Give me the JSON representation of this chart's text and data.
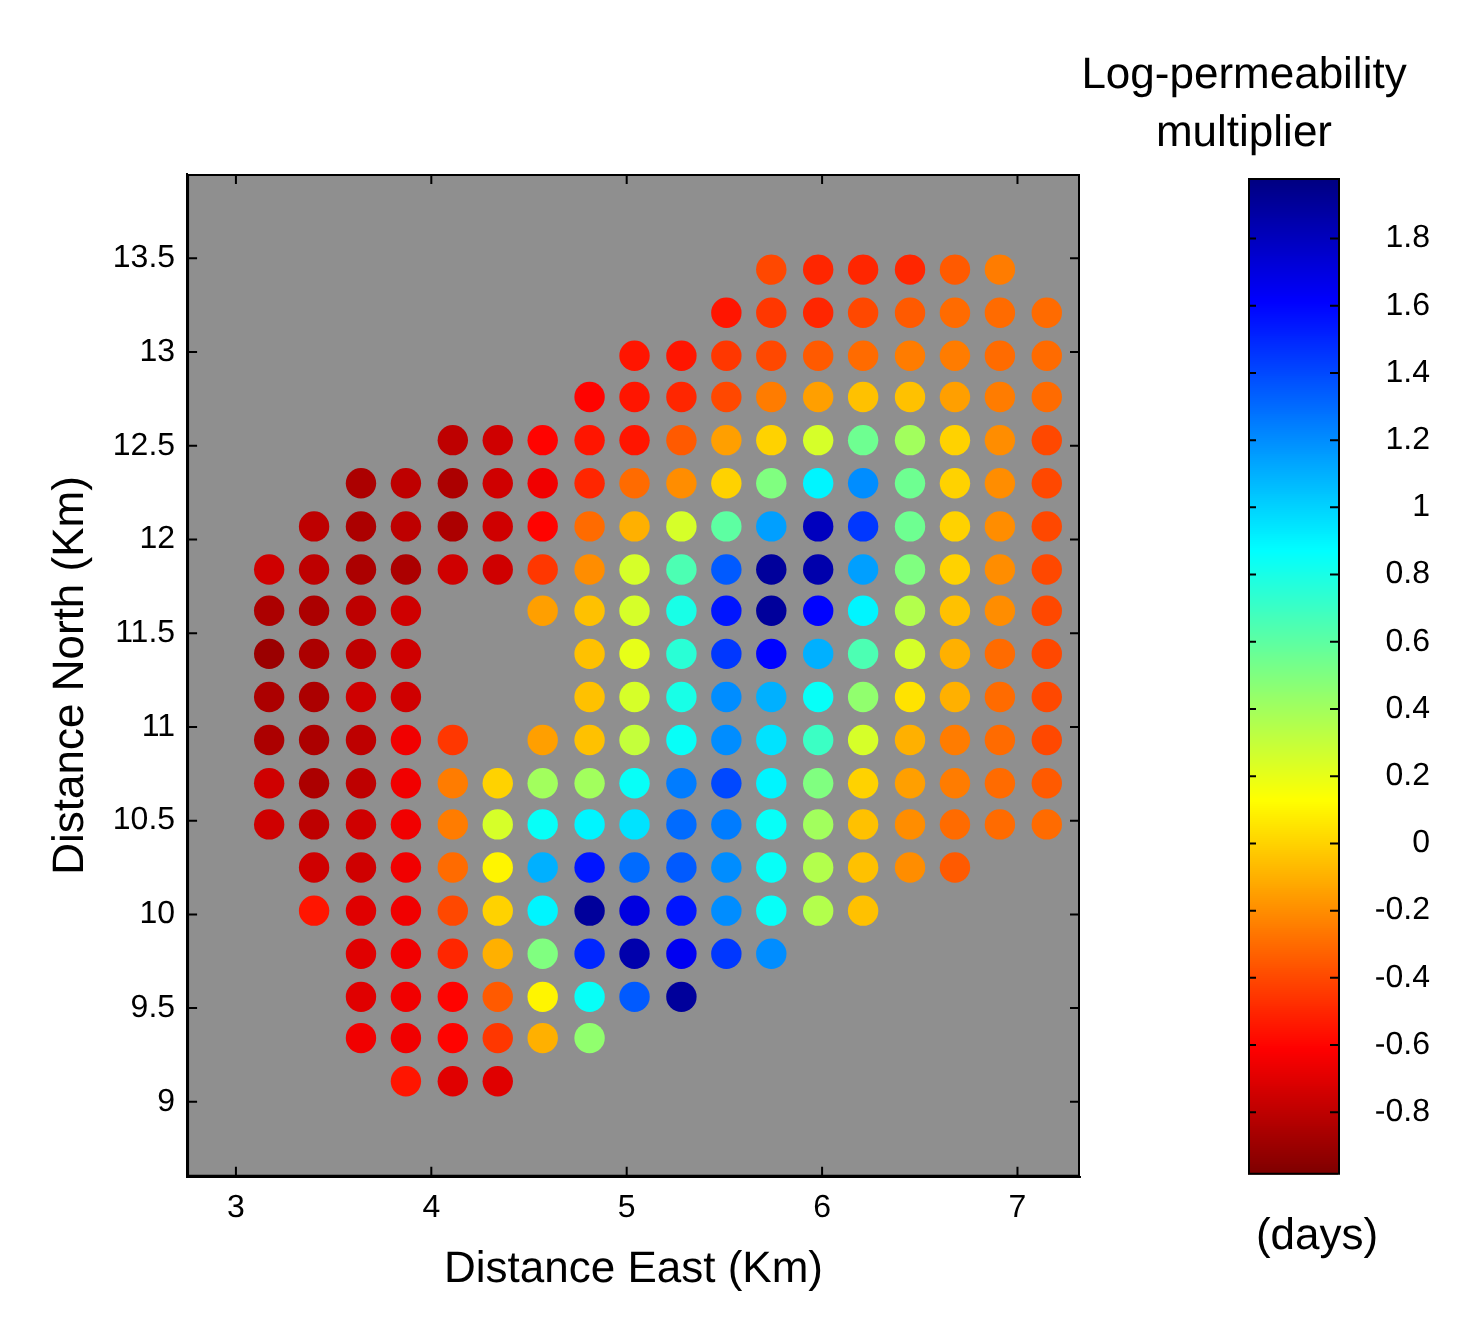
{
  "chart_data": {
    "type": "scatter",
    "xlabel": "Distance East (Km)",
    "ylabel": "Distance North (Km)",
    "clabel": "Log-permeability multiplier",
    "annotations": [
      "(days)"
    ],
    "marker": "circle",
    "xlim": [
      2.75,
      7.32
    ],
    "xticks": [
      3,
      4,
      5,
      6,
      7
    ],
    "ylim": [
      8.6,
      13.95
    ],
    "yticks": [
      9,
      9.5,
      10,
      10.5,
      11,
      11.5,
      12,
      12.5,
      13,
      13.5
    ],
    "clim": [
      -0.98,
      1.98
    ],
    "cticks": [
      -0.8,
      -0.6,
      -0.4,
      -0.2,
      0,
      0.2,
      0.4,
      0.6,
      0.8,
      1,
      1.2,
      1.4,
      1.6,
      1.8
    ],
    "x": [
      5.74,
      5.98,
      6.21,
      6.45,
      6.68,
      6.91,
      5.51,
      5.74,
      5.98,
      6.21,
      6.45,
      6.68,
      6.91,
      7.15,
      5.04,
      5.28,
      5.51,
      5.74,
      5.98,
      6.21,
      6.45,
      6.68,
      6.91,
      7.15,
      4.81,
      5.04,
      5.28,
      5.51,
      5.74,
      5.98,
      6.21,
      6.45,
      6.68,
      6.91,
      7.15,
      4.11,
      4.34,
      4.57,
      4.81,
      5.04,
      5.28,
      5.51,
      5.74,
      5.98,
      6.21,
      6.45,
      6.68,
      6.91,
      7.15,
      3.64,
      3.87,
      4.11,
      4.34,
      4.57,
      4.81,
      5.04,
      5.28,
      5.51,
      5.74,
      5.98,
      6.21,
      6.45,
      6.68,
      6.91,
      7.15,
      3.4,
      3.64,
      3.87,
      4.11,
      4.34,
      4.57,
      4.81,
      5.04,
      5.28,
      5.51,
      5.74,
      5.98,
      6.21,
      6.45,
      6.68,
      6.91,
      7.15,
      3.17,
      3.4,
      3.64,
      3.87,
      4.11,
      4.34,
      4.57,
      4.81,
      5.04,
      5.28,
      5.51,
      5.74,
      5.98,
      6.21,
      6.45,
      6.68,
      6.91,
      7.15,
      3.17,
      3.4,
      3.64,
      3.87,
      4.57,
      4.81,
      5.04,
      5.28,
      5.51,
      5.74,
      5.98,
      6.21,
      6.45,
      6.68,
      6.91,
      7.15,
      3.17,
      3.4,
      3.64,
      3.87,
      4.81,
      5.04,
      5.28,
      5.51,
      5.74,
      5.98,
      6.21,
      6.45,
      6.68,
      6.91,
      7.15,
      3.17,
      3.4,
      3.64,
      3.87,
      4.81,
      5.04,
      5.28,
      5.51,
      5.74,
      5.98,
      6.21,
      6.45,
      6.68,
      6.91,
      7.15,
      3.17,
      3.4,
      3.64,
      3.87,
      4.11,
      4.57,
      4.81,
      5.04,
      5.28,
      5.51,
      5.74,
      5.98,
      6.21,
      6.45,
      6.68,
      6.91,
      7.15,
      3.17,
      3.4,
      3.64,
      3.87,
      4.11,
      4.34,
      4.57,
      4.81,
      5.04,
      5.28,
      5.51,
      5.74,
      5.98,
      6.21,
      6.45,
      6.68,
      6.91,
      7.15,
      3.17,
      3.4,
      3.64,
      3.87,
      4.11,
      4.34,
      4.57,
      4.81,
      5.04,
      5.28,
      5.51,
      5.74,
      5.98,
      6.21,
      6.45,
      6.68,
      6.91,
      7.15,
      3.4,
      3.64,
      3.87,
      4.11,
      4.34,
      4.57,
      4.81,
      5.04,
      5.28,
      5.51,
      5.74,
      5.98,
      6.21,
      6.45,
      6.68,
      3.4,
      3.64,
      3.87,
      4.11,
      4.34,
      4.57,
      4.81,
      5.04,
      5.28,
      5.51,
      5.74,
      5.98,
      6.21,
      3.64,
      3.87,
      4.11,
      4.34,
      4.57,
      4.81,
      5.04,
      5.28,
      5.51,
      5.74,
      3.64,
      3.87,
      4.11,
      4.34,
      4.57,
      4.81,
      5.04,
      5.28,
      3.64,
      3.87,
      4.11,
      4.34,
      4.57,
      4.81,
      3.87,
      4.11,
      4.34
    ],
    "values": [
      13.44,
      13.44,
      13.44,
      13.44,
      13.44,
      13.44,
      13.21,
      13.21,
      13.21,
      13.21,
      13.21,
      13.21,
      13.21,
      13.21,
      12.98,
      12.98,
      12.98,
      12.98,
      12.98,
      12.98,
      12.98,
      12.98,
      12.98,
      12.98,
      12.76,
      12.76,
      12.76,
      12.76,
      12.76,
      12.76,
      12.76,
      12.76,
      12.76,
      12.76,
      12.76,
      12.53,
      12.53,
      12.53,
      12.53,
      12.53,
      12.53,
      12.53,
      12.53,
      12.53,
      12.53,
      12.53,
      12.53,
      12.53,
      12.53,
      12.3,
      12.3,
      12.3,
      12.3,
      12.3,
      12.3,
      12.3,
      12.3,
      12.3,
      12.3,
      12.3,
      12.3,
      12.3,
      12.3,
      12.3,
      12.3,
      12.07,
      12.07,
      12.07,
      12.07,
      12.07,
      12.07,
      12.07,
      12.07,
      12.07,
      12.07,
      12.07,
      12.07,
      12.07,
      12.07,
      12.07,
      12.07,
      12.07,
      11.84,
      11.84,
      11.84,
      11.84,
      11.84,
      11.84,
      11.84,
      11.84,
      11.84,
      11.84,
      11.84,
      11.84,
      11.84,
      11.84,
      11.84,
      11.84,
      11.84,
      11.84,
      11.62,
      11.62,
      11.62,
      11.62,
      11.62,
      11.62,
      11.62,
      11.62,
      11.62,
      11.62,
      11.62,
      11.62,
      11.62,
      11.62,
      11.62,
      11.62,
      11.39,
      11.39,
      11.39,
      11.39,
      11.39,
      11.39,
      11.39,
      11.39,
      11.39,
      11.39,
      11.39,
      11.39,
      11.39,
      11.39,
      11.39,
      11.16,
      11.16,
      11.16,
      11.16,
      11.16,
      11.16,
      11.16,
      11.16,
      11.16,
      11.16,
      11.16,
      11.16,
      11.16,
      11.16,
      11.16,
      10.93,
      10.93,
      10.93,
      10.93,
      10.93,
      10.93,
      10.93,
      10.93,
      10.93,
      10.93,
      10.93,
      10.93,
      10.93,
      10.93,
      10.93,
      10.93,
      10.93,
      10.7,
      10.7,
      10.7,
      10.7,
      10.7,
      10.7,
      10.7,
      10.7,
      10.7,
      10.7,
      10.7,
      10.7,
      10.7,
      10.7,
      10.7,
      10.7,
      10.7,
      10.7,
      10.48,
      10.48,
      10.48,
      10.48,
      10.48,
      10.48,
      10.48,
      10.48,
      10.48,
      10.48,
      10.48,
      10.48,
      10.48,
      10.48,
      10.48,
      10.48,
      10.48,
      10.48,
      10.25,
      10.25,
      10.25,
      10.25,
      10.25,
      10.25,
      10.25,
      10.25,
      10.25,
      10.25,
      10.25,
      10.25,
      10.25,
      10.25,
      10.25,
      10.02,
      10.02,
      10.02,
      10.02,
      10.02,
      10.02,
      10.02,
      10.02,
      10.02,
      10.02,
      10.02,
      10.02,
      10.02,
      9.79,
      9.79,
      9.79,
      9.79,
      9.79,
      9.79,
      9.79,
      9.79,
      9.79,
      9.79,
      9.56,
      9.56,
      9.56,
      9.56,
      9.56,
      9.56,
      9.56,
      9.56,
      9.34,
      9.34,
      9.34,
      9.34,
      9.34,
      9.34,
      9.11,
      9.11,
      9.11
    ],
    "cvalues": [
      -0.4,
      -0.5,
      -0.5,
      -0.5,
      -0.35,
      -0.25,
      -0.55,
      -0.45,
      -0.5,
      -0.4,
      -0.35,
      -0.3,
      -0.3,
      -0.3,
      -0.55,
      -0.55,
      -0.45,
      -0.4,
      -0.35,
      -0.3,
      -0.25,
      -0.25,
      -0.3,
      -0.3,
      -0.6,
      -0.55,
      -0.5,
      -0.4,
      -0.25,
      -0.15,
      -0.05,
      -0.05,
      -0.15,
      -0.25,
      -0.3,
      -0.8,
      -0.75,
      -0.6,
      -0.55,
      -0.55,
      -0.35,
      -0.15,
      0,
      0.25,
      0.55,
      0.4,
      0,
      -0.2,
      -0.4,
      -0.85,
      -0.8,
      -0.85,
      -0.75,
      -0.65,
      -0.5,
      -0.3,
      -0.2,
      0,
      0.5,
      0.9,
      1.2,
      0.55,
      0,
      -0.2,
      -0.4,
      -0.8,
      -0.85,
      -0.8,
      -0.85,
      -0.75,
      -0.6,
      -0.3,
      -0.1,
      0.25,
      0.6,
      1.15,
      1.8,
      1.45,
      0.55,
      0,
      -0.2,
      -0.4,
      -0.75,
      -0.8,
      -0.85,
      -0.85,
      -0.75,
      -0.75,
      -0.45,
      -0.2,
      0.25,
      0.65,
      1.35,
      1.9,
      1.85,
      1.15,
      0.5,
      0,
      -0.2,
      -0.4,
      -0.85,
      -0.85,
      -0.8,
      -0.75,
      -0.15,
      -0.05,
      0.25,
      0.8,
      1.55,
      1.9,
      1.6,
      0.9,
      0.35,
      -0.05,
      -0.2,
      -0.4,
      -0.9,
      -0.85,
      -0.8,
      -0.75,
      -0.05,
      0.2,
      0.75,
      1.45,
      1.6,
      1.1,
      0.65,
      0.25,
      -0.1,
      -0.3,
      -0.4,
      -0.85,
      -0.85,
      -0.75,
      -0.75,
      -0.05,
      0.25,
      0.8,
      1.2,
      1.1,
      0.85,
      0.45,
      0.05,
      -0.1,
      -0.3,
      -0.4,
      -0.85,
      -0.85,
      -0.8,
      -0.65,
      -0.45,
      -0.15,
      -0.05,
      0.3,
      0.85,
      1.2,
      0.95,
      0.7,
      0.25,
      -0.1,
      -0.25,
      -0.3,
      -0.4,
      -0.75,
      -0.85,
      -0.8,
      -0.65,
      -0.25,
      0,
      0.4,
      0.4,
      0.85,
      1.25,
      1.4,
      0.9,
      0.5,
      0,
      -0.15,
      -0.25,
      -0.3,
      -0.35,
      -0.75,
      -0.8,
      -0.75,
      -0.65,
      -0.25,
      0.25,
      0.85,
      0.9,
      0.95,
      1.3,
      1.25,
      0.85,
      0.4,
      -0.05,
      -0.2,
      -0.3,
      -0.3,
      -0.3,
      -0.75,
      -0.75,
      -0.65,
      -0.3,
      0.1,
      1.1,
      1.55,
      1.3,
      1.35,
      1.2,
      0.85,
      0.35,
      -0.05,
      -0.2,
      -0.35,
      -0.55,
      -0.7,
      -0.65,
      -0.4,
      0,
      0.9,
      1.9,
      1.7,
      1.55,
      1.2,
      0.85,
      0.35,
      -0.05,
      -0.7,
      -0.65,
      -0.5,
      -0.1,
      0.5,
      1.5,
      1.85,
      1.65,
      1.45,
      1.2,
      -0.7,
      -0.65,
      -0.6,
      -0.35,
      0.1,
      0.85,
      1.35,
      1.9,
      -0.65,
      -0.65,
      -0.6,
      -0.45,
      -0.1,
      0.45,
      -0.55,
      -0.7,
      -0.7
    ]
  }
}
